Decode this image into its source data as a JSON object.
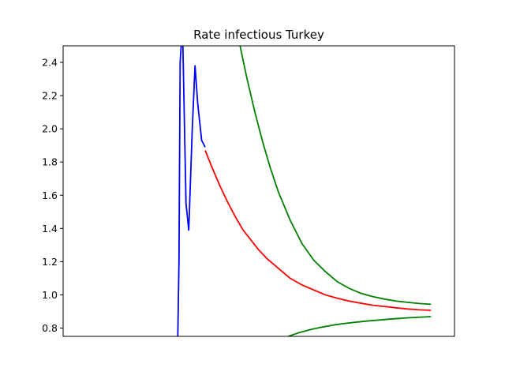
{
  "chart_data": {
    "type": "line",
    "title": "Rate infectious Turkey",
    "xlabel": "",
    "ylabel": "",
    "x_ticks_shown": false,
    "xlim": [
      0,
      100
    ],
    "ylim": [
      0.75,
      2.5
    ],
    "y_ticks": [
      0.8,
      1.0,
      1.2,
      1.4,
      1.6,
      1.8,
      2.0,
      2.2,
      2.4
    ],
    "y_tick_labels": [
      "0.8",
      "1.0",
      "1.2",
      "1.4",
      "1.6",
      "1.8",
      "2.0",
      "2.2",
      "2.4"
    ],
    "grid": false,
    "legend": "none",
    "series": [
      {
        "color": "#0000ff",
        "x": [
          29.3,
          29.6,
          29.9,
          30.3,
          30.6,
          31.4,
          32.1,
          33.0,
          33.7,
          34.4,
          35.4,
          36.3
        ],
        "y": [
          0.75,
          1.2,
          2.4,
          2.55,
          2.5,
          1.55,
          1.39,
          2.0,
          2.38,
          2.15,
          1.93,
          1.89
        ]
      },
      {
        "color": "#ff0000",
        "x": [
          36.3,
          38,
          40,
          42,
          44,
          46,
          48,
          50,
          52,
          55,
          58,
          61,
          64,
          67,
          70,
          73,
          76,
          79,
          82,
          85,
          88,
          91,
          94
        ],
        "y": [
          1.87,
          1.77,
          1.66,
          1.56,
          1.47,
          1.39,
          1.33,
          1.27,
          1.22,
          1.16,
          1.1,
          1.06,
          1.03,
          1.0,
          0.98,
          0.963,
          0.95,
          0.938,
          0.93,
          0.922,
          0.915,
          0.91,
          0.907
        ]
      },
      {
        "color": "#008000",
        "x": [
          45.2,
          47,
          49,
          51,
          53,
          55,
          58,
          61,
          64,
          67,
          70,
          73,
          76,
          79,
          82,
          85,
          88,
          91,
          94
        ],
        "y": [
          2.5,
          2.3,
          2.1,
          1.92,
          1.76,
          1.62,
          1.45,
          1.31,
          1.21,
          1.14,
          1.08,
          1.04,
          1.01,
          0.99,
          0.975,
          0.963,
          0.955,
          0.948,
          0.943
        ]
      },
      {
        "color": "#008000",
        "x": [
          57.5,
          60,
          63,
          66,
          69,
          72,
          75,
          78,
          81,
          84,
          87,
          90,
          94
        ],
        "y": [
          0.75,
          0.77,
          0.79,
          0.805,
          0.818,
          0.828,
          0.836,
          0.843,
          0.849,
          0.855,
          0.86,
          0.864,
          0.869
        ]
      }
    ]
  }
}
